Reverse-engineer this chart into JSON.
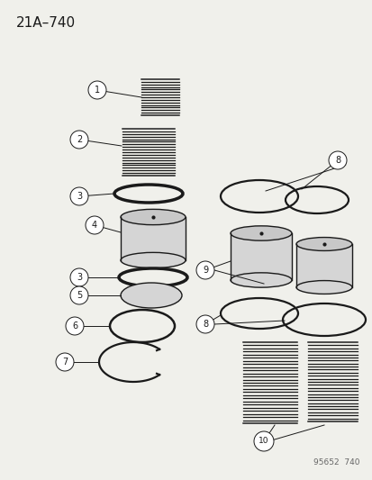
{
  "title": "21A–740",
  "bg_color": "#f0f0eb",
  "line_color": "#1a1a1a",
  "label_font_size": 7,
  "title_font_size": 11,
  "footer": "95652  740",
  "label_circle_r": 0.018,
  "lw_spring": 0.9,
  "lw_oring": 1.8,
  "lw_leader": 0.7
}
